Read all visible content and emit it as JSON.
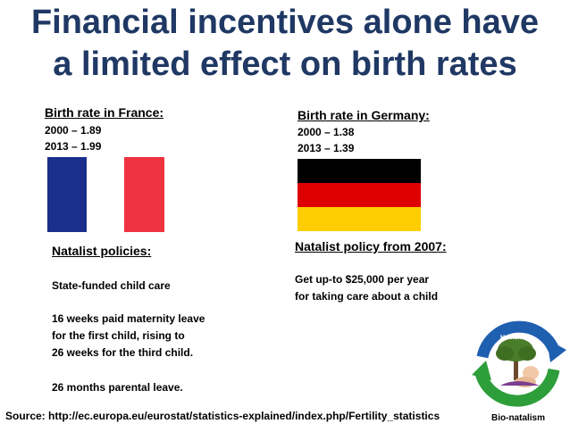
{
  "title": {
    "line1": "Financial incentives alone have",
    "line2": "a limited effect on birth rates"
  },
  "france": {
    "heading": "Birth rate in France:",
    "stats": [
      "2000 – 1.89",
      "2013 – 1.99"
    ],
    "flag_colors": {
      "blue": "#1a2f8c",
      "white": "#ffffff",
      "red": "#ef3340"
    },
    "policy_heading": "Natalist policies:",
    "policies": [
      "State-funded child care",
      "16 weeks paid maternity leave",
      "for the first child, rising to",
      "26 weeks for the third child.",
      "26 months parental leave."
    ]
  },
  "germany": {
    "heading": "Birth rate in Germany:",
    "stats": [
      "2000 – 1.38",
      "2013 – 1.39"
    ],
    "flag_colors": {
      "black": "#000000",
      "red": "#dd0000",
      "gold": "#ffce00"
    },
    "policy_heading": "Natalist policy from 2007:",
    "policies": [
      "Get up-to $25,000 per year",
      "for taking care about a child"
    ]
  },
  "source": "Source: http://ec.europa.eu/eurostat/statistics-explained/index.php/Fertility_statistics",
  "logo": {
    "top_text": "Humanity",
    "bottom_text": "Bio-natalism",
    "colors": {
      "blue": "#1f5fb0",
      "green": "#2e9e3a",
      "tree": "#4a7d2a"
    }
  },
  "colors": {
    "title": "#1f3864"
  }
}
